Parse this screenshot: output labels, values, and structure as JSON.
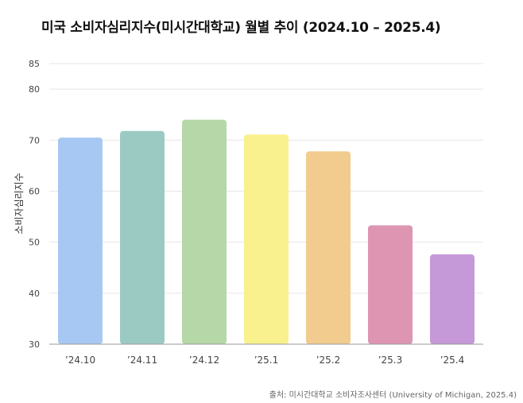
{
  "title": "미국 소비자심리지수(미시간대학교) 월별 추이 (2024.10 – 2025.4)",
  "source": "출처: 미시간대학교 소비자조사센터 (University of Michigan, 2025.4)",
  "colors": {
    "grid": "#e6e6e6",
    "axis": "#999999",
    "tick_text": "#444444",
    "bars": [
      "#a7c8f2",
      "#9bcac3",
      "#b6d7a8",
      "#f8f18e",
      "#f1cc8e",
      "#de95b1",
      "#c598d8"
    ]
  },
  "chart_data": {
    "type": "bar",
    "title": "미국 소비자심리지수(미시간대학교) 월별 추이 (2024.10 – 2025.4)",
    "categories": [
      "’24.10",
      "’24.11",
      "’24.12",
      "’25.1",
      "’25.2",
      "’25.3",
      "’25.4"
    ],
    "values": [
      70.5,
      71.8,
      74.0,
      71.1,
      67.8,
      53.3,
      47.6
    ],
    "xlabel": "",
    "ylabel": "소비자심리지수",
    "ylim": [
      30,
      85
    ],
    "yticks": [
      30,
      40,
      50,
      60,
      70,
      80,
      85
    ],
    "grid": true,
    "legend": "none"
  }
}
